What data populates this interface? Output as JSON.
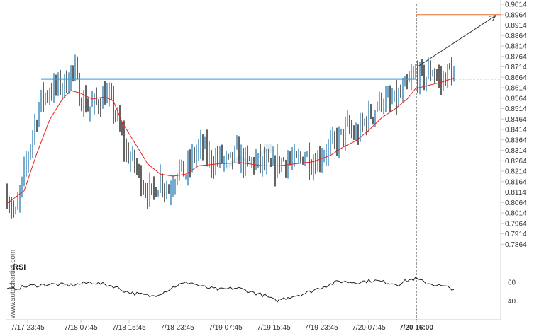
{
  "chart_data": [
    {
      "type": "bar",
      "subtype": "candlestick-range",
      "x_ticks": [
        "7/17 23:45",
        "7/18 07:45",
        "7/18 15:45",
        "7/18 23:45",
        "7/19 07:45",
        "7/19 15:45",
        "7/19 23:45",
        "7/20 07:45",
        "7/20 16:00"
      ],
      "highlight_x_tick": "7/20 16:00",
      "y_ticks": [
        "0.9014",
        "0.8964",
        "0.8914",
        "0.8864",
        "0.8814",
        "0.8764",
        "0.8714",
        "0.8664",
        "0.8614",
        "0.8564",
        "0.8514",
        "0.8464",
        "0.8414",
        "0.8364",
        "0.8314",
        "0.8264",
        "0.8214",
        "0.8164",
        "0.8114",
        "0.8064",
        "0.8014",
        "0.7964",
        "0.7914",
        "0.7864"
      ],
      "ylim": [
        0.7838,
        0.9014
      ],
      "resistance_level": 0.8656,
      "target_level": 0.8964,
      "current_level": 0.8656,
      "price_anchors": [
        [
          0,
          0.81
        ],
        [
          4,
          0.8
        ],
        [
          8,
          0.82
        ],
        [
          12,
          0.84
        ],
        [
          16,
          0.856
        ],
        [
          20,
          0.86
        ],
        [
          24,
          0.862
        ],
        [
          28,
          0.864
        ],
        [
          30,
          0.87
        ],
        [
          32,
          0.868
        ],
        [
          34,
          0.858
        ],
        [
          38,
          0.852
        ],
        [
          42,
          0.854
        ],
        [
          46,
          0.858
        ],
        [
          50,
          0.852
        ],
        [
          52,
          0.845
        ],
        [
          56,
          0.83
        ],
        [
          60,
          0.825
        ],
        [
          64,
          0.815
        ],
        [
          68,
          0.81
        ],
        [
          72,
          0.818
        ],
        [
          76,
          0.812
        ],
        [
          80,
          0.823
        ],
        [
          84,
          0.82
        ],
        [
          88,
          0.83
        ],
        [
          92,
          0.833
        ],
        [
          96,
          0.826
        ],
        [
          100,
          0.828
        ],
        [
          104,
          0.825
        ],
        [
          108,
          0.83
        ],
        [
          112,
          0.825
        ],
        [
          116,
          0.826
        ],
        [
          120,
          0.825
        ],
        [
          124,
          0.822
        ],
        [
          128,
          0.826
        ],
        [
          132,
          0.827
        ],
        [
          136,
          0.825
        ],
        [
          140,
          0.83
        ],
        [
          144,
          0.825
        ],
        [
          148,
          0.83
        ],
        [
          152,
          0.833
        ],
        [
          156,
          0.837
        ],
        [
          160,
          0.842
        ],
        [
          164,
          0.838
        ],
        [
          168,
          0.845
        ],
        [
          172,
          0.85
        ],
        [
          176,
          0.856
        ],
        [
          180,
          0.854
        ],
        [
          184,
          0.856
        ],
        [
          188,
          0.862
        ],
        [
          192,
          0.868
        ],
        [
          196,
          0.866
        ],
        [
          200,
          0.87
        ],
        [
          204,
          0.864
        ],
        [
          208,
          0.87
        ],
        [
          210,
          0.866
        ]
      ],
      "ma_anchors": [
        [
          0,
          0.806
        ],
        [
          8,
          0.812
        ],
        [
          14,
          0.83
        ],
        [
          20,
          0.846
        ],
        [
          26,
          0.856
        ],
        [
          30,
          0.86
        ],
        [
          34,
          0.859
        ],
        [
          40,
          0.856
        ],
        [
          46,
          0.857
        ],
        [
          50,
          0.855
        ],
        [
          54,
          0.845
        ],
        [
          60,
          0.835
        ],
        [
          66,
          0.825
        ],
        [
          72,
          0.82
        ],
        [
          78,
          0.819
        ],
        [
          84,
          0.82
        ],
        [
          90,
          0.824
        ],
        [
          100,
          0.825
        ],
        [
          110,
          0.8255
        ],
        [
          120,
          0.824
        ],
        [
          128,
          0.824
        ],
        [
          136,
          0.825
        ],
        [
          144,
          0.826
        ],
        [
          152,
          0.829
        ],
        [
          158,
          0.833
        ],
        [
          164,
          0.836
        ],
        [
          170,
          0.841
        ],
        [
          176,
          0.847
        ],
        [
          182,
          0.851
        ],
        [
          188,
          0.856
        ],
        [
          192,
          0.861
        ],
        [
          196,
          0.862
        ],
        [
          200,
          0.863
        ],
        [
          204,
          0.864
        ],
        [
          210,
          0.866
        ]
      ]
    },
    {
      "type": "line",
      "title": "RSI",
      "y_ticks": [
        "60",
        "40"
      ],
      "ylim": [
        35,
        70
      ],
      "rsi_anchors": [
        [
          0,
          52
        ],
        [
          10,
          56
        ],
        [
          20,
          58
        ],
        [
          30,
          57
        ],
        [
          40,
          60
        ],
        [
          50,
          56
        ],
        [
          56,
          50
        ],
        [
          60,
          48
        ],
        [
          68,
          45
        ],
        [
          74,
          50
        ],
        [
          80,
          57
        ],
        [
          86,
          60
        ],
        [
          92,
          55
        ],
        [
          100,
          52
        ],
        [
          108,
          54
        ],
        [
          116,
          49
        ],
        [
          122,
          45
        ],
        [
          126,
          40
        ],
        [
          132,
          44
        ],
        [
          140,
          48
        ],
        [
          148,
          55
        ],
        [
          156,
          61
        ],
        [
          164,
          60
        ],
        [
          172,
          62
        ],
        [
          178,
          60
        ],
        [
          184,
          58
        ],
        [
          188,
          62
        ],
        [
          192,
          64
        ],
        [
          196,
          60
        ],
        [
          200,
          58
        ],
        [
          204,
          56
        ],
        [
          208,
          54
        ],
        [
          210,
          53
        ]
      ]
    }
  ],
  "watermark": "www.autochartist.com"
}
